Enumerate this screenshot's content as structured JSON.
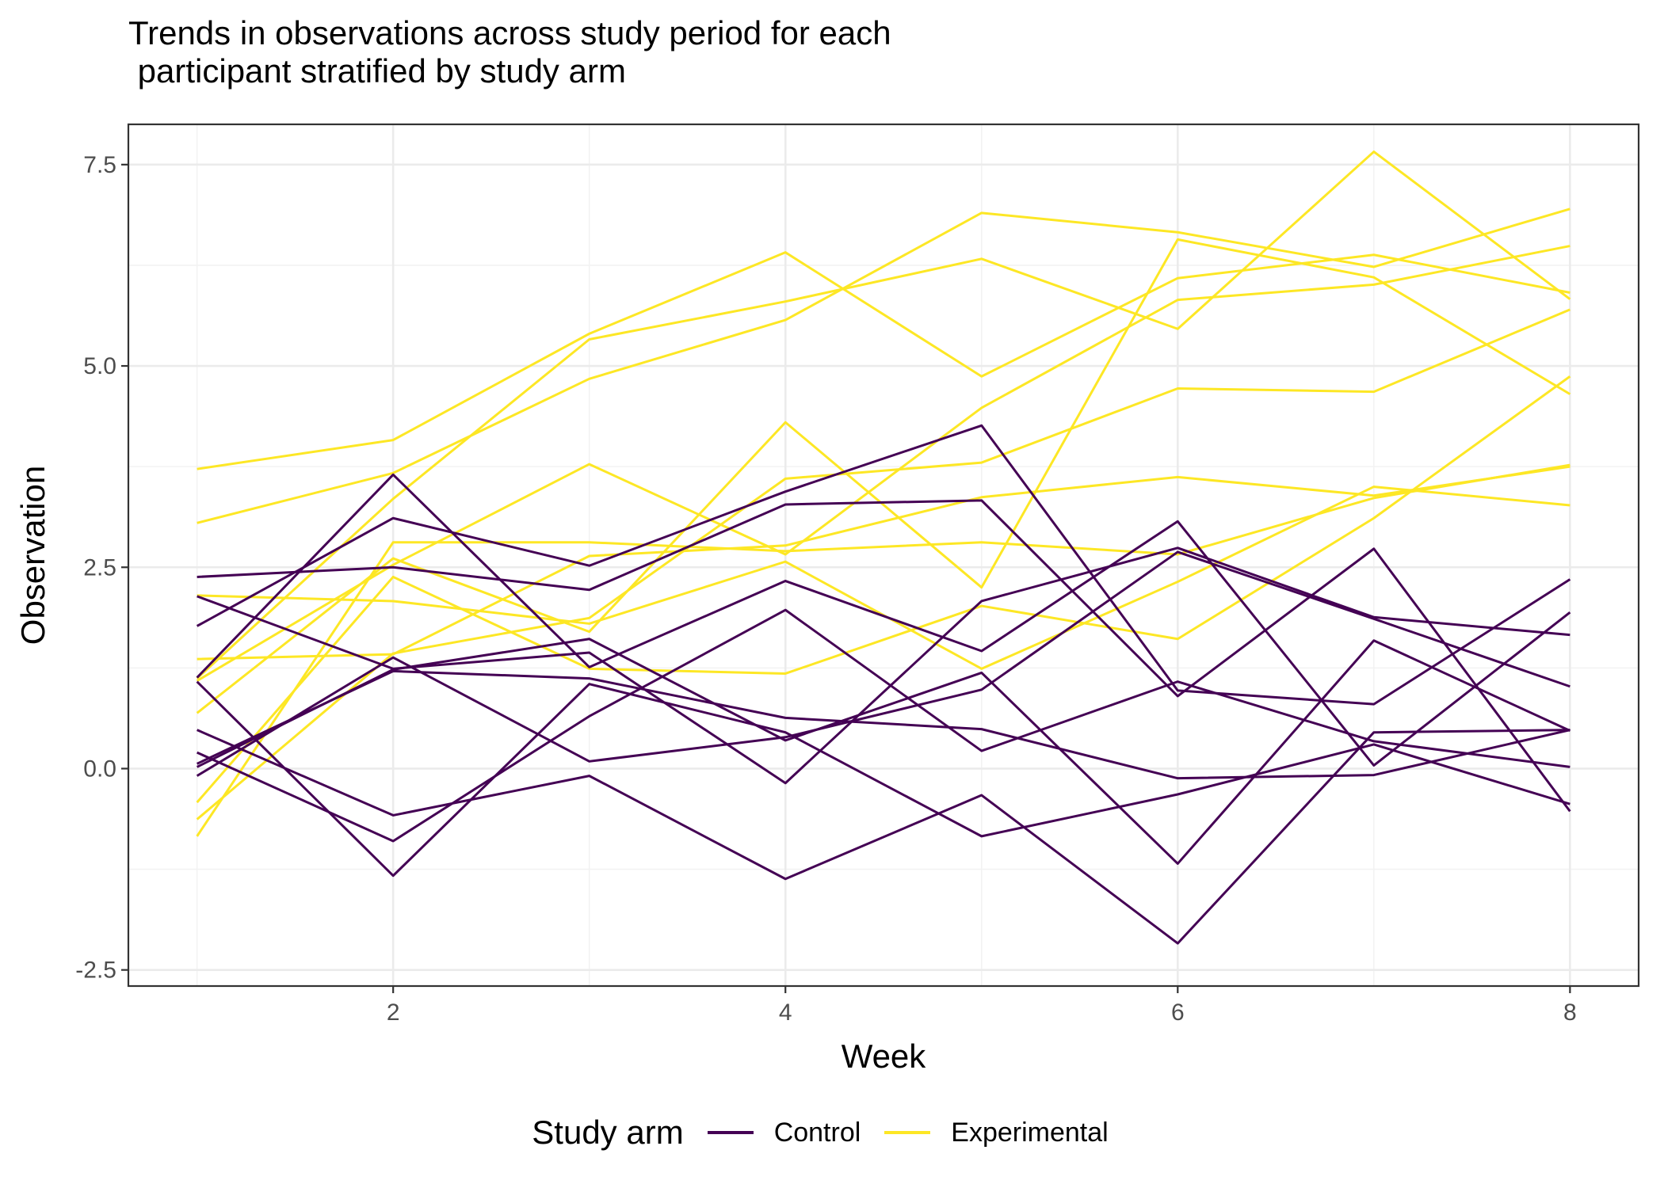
{
  "chart_data": {
    "type": "line",
    "title": "Trends in observations across study period for each\n participant stratified by study arm",
    "xlabel": "Week",
    "ylabel": "Observation",
    "xlim": [
      0.65,
      8.35
    ],
    "ylim": [
      -2.7,
      8.0
    ],
    "xticks": [
      2,
      4,
      6,
      8
    ],
    "xtick_labels": [
      "2",
      "4",
      "6",
      "8"
    ],
    "yticks": [
      -2.5,
      0.0,
      2.5,
      5.0,
      7.5
    ],
    "ytick_labels": [
      "-2.5",
      "0.0",
      "2.5",
      "5.0",
      "7.5"
    ],
    "grid": true,
    "legend": {
      "title": "Study arm",
      "position": "bottom",
      "entries": [
        {
          "label": "Control",
          "color": "#440154"
        },
        {
          "label": "Experimental",
          "color": "#FDE725"
        }
      ]
    },
    "x": [
      1,
      2,
      3,
      4,
      5,
      6,
      7,
      8
    ],
    "series": [
      {
        "group": "Experimental",
        "values": [
          3.72,
          4.08,
          5.4,
          6.41,
          4.87,
          6.09,
          6.38,
          5.91
        ]
      },
      {
        "group": "Experimental",
        "values": [
          3.05,
          3.67,
          4.84,
          5.57,
          6.9,
          6.66,
          6.23,
          6.95
        ]
      },
      {
        "group": "Experimental",
        "values": [
          1.12,
          3.35,
          5.33,
          5.8,
          6.33,
          5.46,
          7.66,
          5.83
        ]
      },
      {
        "group": "Experimental",
        "values": [
          1.09,
          2.53,
          3.78,
          2.66,
          4.48,
          5.82,
          6.01,
          6.49
        ]
      },
      {
        "group": "Experimental",
        "values": [
          0.69,
          2.61,
          1.7,
          4.3,
          2.25,
          6.57,
          6.1,
          4.65
        ]
      },
      {
        "group": "Experimental",
        "values": [
          -0.63,
          1.43,
          1.87,
          3.6,
          3.8,
          4.72,
          4.68,
          5.7
        ]
      },
      {
        "group": "Experimental",
        "values": [
          -0.84,
          2.81,
          2.81,
          2.7,
          2.81,
          2.66,
          3.36,
          3.77
        ]
      },
      {
        "group": "Experimental",
        "values": [
          2.15,
          2.08,
          1.8,
          2.57,
          1.24,
          2.32,
          3.5,
          3.27
        ]
      },
      {
        "group": "Experimental",
        "values": [
          1.36,
          1.42,
          2.64,
          2.77,
          3.37,
          3.62,
          3.39,
          3.75
        ]
      },
      {
        "group": "Experimental",
        "values": [
          -0.42,
          2.38,
          1.24,
          1.18,
          2.02,
          1.61,
          3.11,
          4.87
        ]
      },
      {
        "group": "Control",
        "values": [
          2.38,
          2.5,
          2.22,
          3.28,
          3.33,
          0.9,
          2.73,
          -0.53
        ]
      },
      {
        "group": "Control",
        "values": [
          1.77,
          3.11,
          2.52,
          3.44,
          4.26,
          0.97,
          0.8,
          2.35
        ]
      },
      {
        "group": "Control",
        "values": [
          1.13,
          3.65,
          1.26,
          2.33,
          1.46,
          3.07,
          0.04,
          1.94
        ]
      },
      {
        "group": "Control",
        "values": [
          2.14,
          1.24,
          1.44,
          -0.18,
          2.08,
          2.74,
          1.88,
          1.66
        ]
      },
      {
        "group": "Control",
        "values": [
          0.06,
          1.21,
          1.12,
          0.63,
          0.49,
          -0.12,
          -0.08,
          0.48
        ]
      },
      {
        "group": "Control",
        "values": [
          0.02,
          1.23,
          1.61,
          0.35,
          1.19,
          -1.18,
          1.59,
          0.47
        ]
      },
      {
        "group": "Control",
        "values": [
          0.48,
          -0.58,
          -0.09,
          -1.37,
          -0.33,
          -2.17,
          0.45,
          0.48
        ]
      },
      {
        "group": "Control",
        "values": [
          -0.09,
          1.38,
          0.09,
          0.39,
          0.98,
          2.69,
          1.86,
          1.02
        ]
      },
      {
        "group": "Control",
        "values": [
          0.2,
          -0.9,
          0.65,
          1.97,
          0.22,
          1.08,
          0.34,
          0.02
        ]
      },
      {
        "group": "Control",
        "values": [
          1.08,
          -1.33,
          1.05,
          0.45,
          -0.84,
          -0.32,
          0.3,
          -0.44
        ]
      }
    ]
  }
}
